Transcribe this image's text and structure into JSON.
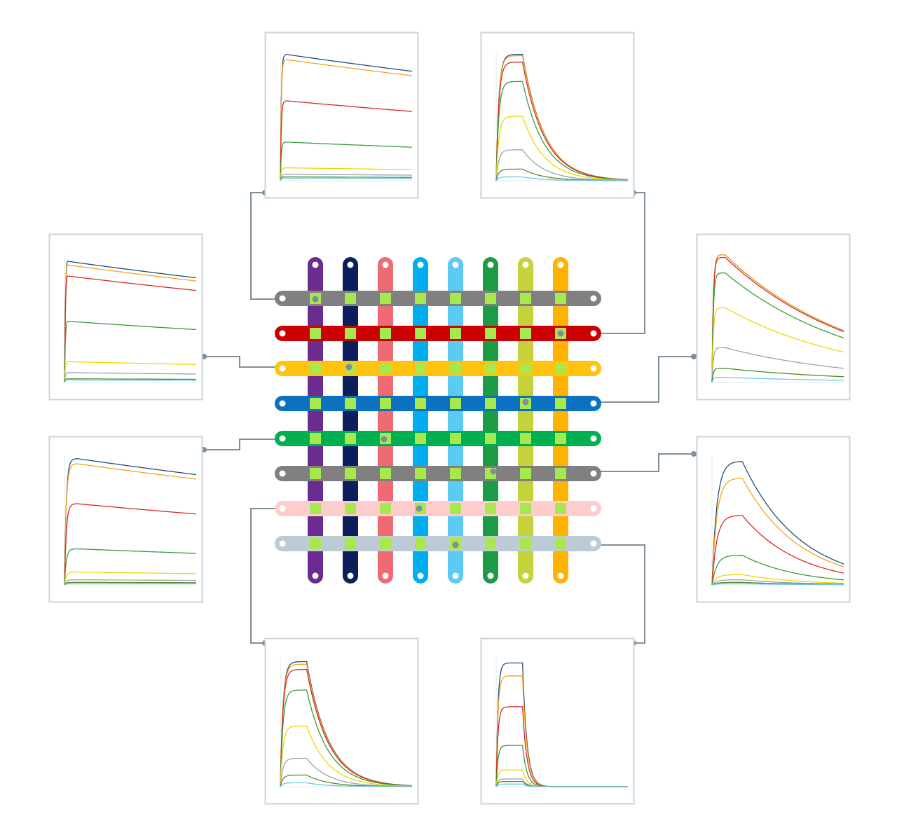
{
  "colors": {
    "panel_border": "#c8d4dc",
    "connector": "#7f8f99",
    "spot": "#a6e84e",
    "hole": "#ffffff"
  },
  "vertical_channels": [
    {
      "color": "#6a2c8e"
    },
    {
      "color": "#0c1f5c"
    },
    {
      "color": "#ef6b73"
    },
    {
      "color": "#00aeef"
    },
    {
      "color": "#5ccbf4"
    },
    {
      "color": "#1e9b45"
    },
    {
      "color": "#c5d23b"
    },
    {
      "color": "#ffb300"
    }
  ],
  "horizontal_channels": [
    {
      "color": "#808080"
    },
    {
      "color": "#cc0000"
    },
    {
      "color": "#ffc20e"
    },
    {
      "color": "#0a72c1"
    },
    {
      "color": "#00b050"
    },
    {
      "color": "#808080"
    },
    {
      "color": "#ffcccc"
    },
    {
      "color": "#bccbd5"
    }
  ],
  "sensorgram_palette": [
    "#1f4e79",
    "#f5a31a",
    "#d62728",
    "#3a9b3a",
    "#f2d600",
    "#9aa3aa",
    "#4d8c2a",
    "#6fc9e0"
  ],
  "panels": [
    {
      "id": "top-left",
      "profile": "slow-off",
      "association_end": 0.05,
      "amplitudes": [
        0.98,
        0.94,
        0.62,
        0.3,
        0.1,
        0.05,
        0.03,
        0.02
      ]
    },
    {
      "id": "top-right",
      "profile": "fast-off",
      "association_end": 0.2,
      "amplitudes": [
        0.98,
        0.97,
        0.92,
        0.77,
        0.5,
        0.24,
        0.09,
        0.03
      ]
    },
    {
      "id": "mid-left-upper",
      "profile": "slow-off",
      "association_end": 0.02,
      "amplitudes": [
        0.99,
        0.96,
        0.87,
        0.5,
        0.17,
        0.08,
        0.03,
        0.02
      ]
    },
    {
      "id": "mid-right-upper",
      "profile": "medium-off",
      "association_end": 0.1,
      "amplitudes": [
        0.99,
        0.99,
        0.97,
        0.85,
        0.58,
        0.27,
        0.11,
        0.04
      ]
    },
    {
      "id": "mid-left-lower",
      "profile": "slow-off",
      "association_end": 0.1,
      "amplitudes": [
        0.98,
        0.94,
        0.63,
        0.28,
        0.1,
        0.04,
        0.02,
        0.01
      ]
    },
    {
      "id": "mid-right-lower",
      "profile": "medium-off-2",
      "association_end": 0.23,
      "amplitudes": [
        0.96,
        0.83,
        0.54,
        0.23,
        0.08,
        0.04,
        0.02,
        0.01
      ]
    },
    {
      "id": "bottom-left",
      "profile": "fast-off",
      "association_end": 0.2,
      "amplitudes": [
        0.97,
        0.95,
        0.91,
        0.75,
        0.47,
        0.22,
        0.09,
        0.03
      ]
    },
    {
      "id": "bottom-right",
      "profile": "very-fast-off",
      "association_end": 0.2,
      "amplitudes": [
        0.96,
        0.86,
        0.62,
        0.32,
        0.13,
        0.06,
        0.04,
        0.02
      ]
    }
  ]
}
